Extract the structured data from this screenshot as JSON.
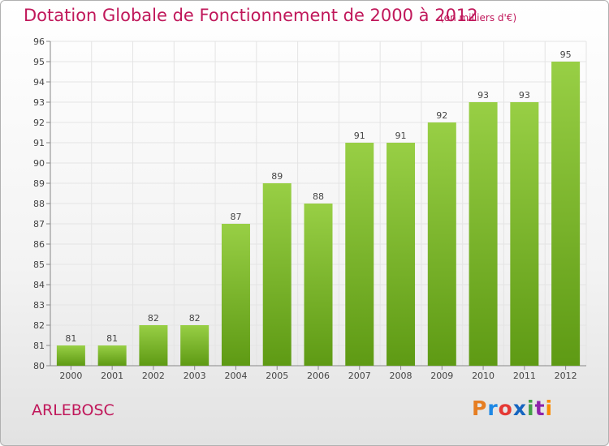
{
  "title": "Dotation Globale de Fonctionnement de 2000 à 2012",
  "unit_label": "(en milliers d'€)",
  "commune": "ARLEBOSC",
  "logo": {
    "letters": [
      "P",
      "r",
      "o",
      "x",
      "i",
      "t",
      "i"
    ],
    "colors": [
      "#e67e22",
      "#1e88e5",
      "#e53935",
      "#1565c0",
      "#43a047",
      "#8e24aa",
      "#fb8c00"
    ]
  },
  "colors": {
    "title": "#c0175a",
    "bar_light": "#98cf45",
    "bar_dark": "#5e9a14",
    "grid": "#e4e4e4"
  },
  "chart_data": {
    "type": "bar",
    "title": "Dotation Globale de Fonctionnement de 2000 à 2012",
    "xlabel": "",
    "ylabel": "(en milliers d'€)",
    "categories": [
      "2000",
      "2001",
      "2002",
      "2003",
      "2004",
      "2005",
      "2006",
      "2007",
      "2008",
      "2009",
      "2010",
      "2011",
      "2012"
    ],
    "values": [
      81,
      81,
      82,
      82,
      87,
      89,
      88,
      91,
      91,
      92,
      93,
      93,
      95
    ],
    "ylim": [
      80,
      96
    ],
    "yticks": [
      80,
      81,
      82,
      83,
      84,
      85,
      86,
      87,
      88,
      89,
      90,
      91,
      92,
      93,
      94,
      95,
      96
    ],
    "grid": true
  }
}
